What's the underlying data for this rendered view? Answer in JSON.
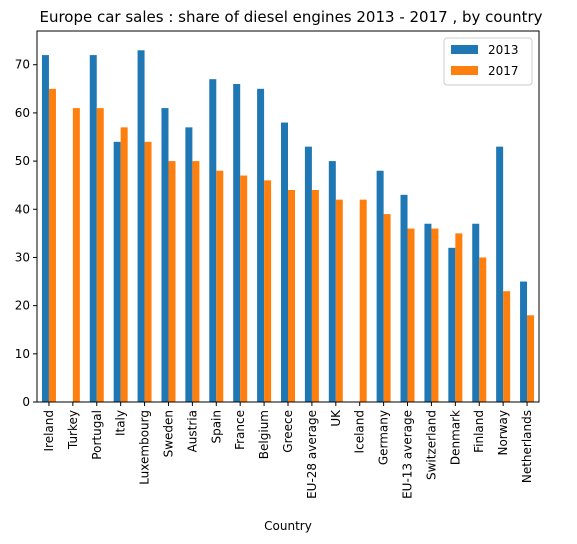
{
  "chart_data": {
    "type": "bar",
    "title": "Europe car sales : share of diesel engines 2013 - 2017 , by country",
    "xlabel": "Country",
    "ylabel": "",
    "ylim": [
      0,
      77
    ],
    "yticks": [
      0,
      10,
      20,
      30,
      40,
      50,
      60,
      70
    ],
    "grid": false,
    "legend_position": "top-right",
    "categories": [
      "Ireland",
      "Turkey",
      "Portugal",
      "Italy",
      "Luxembourg",
      "Sweden",
      "Austria",
      "Spain",
      "France",
      "Belgium",
      "Greece",
      "EU-28 average",
      "UK",
      "Iceland",
      "Germany",
      "EU-13 average",
      "Switzerland",
      "Denmark",
      "Finland",
      "Norway",
      "Netherlands"
    ],
    "series": [
      {
        "name": "2013",
        "color": "#1f77b4",
        "values": [
          72,
          null,
          72,
          54,
          73,
          61,
          57,
          67,
          66,
          65,
          58,
          53,
          50,
          null,
          48,
          43,
          37,
          32,
          37,
          53,
          25
        ]
      },
      {
        "name": "2017",
        "color": "#ff7f0e",
        "values": [
          65,
          61,
          61,
          57,
          54,
          50,
          50,
          48,
          47,
          46,
          44,
          44,
          42,
          42,
          39,
          36,
          36,
          35,
          30,
          23,
          18
        ]
      }
    ]
  }
}
